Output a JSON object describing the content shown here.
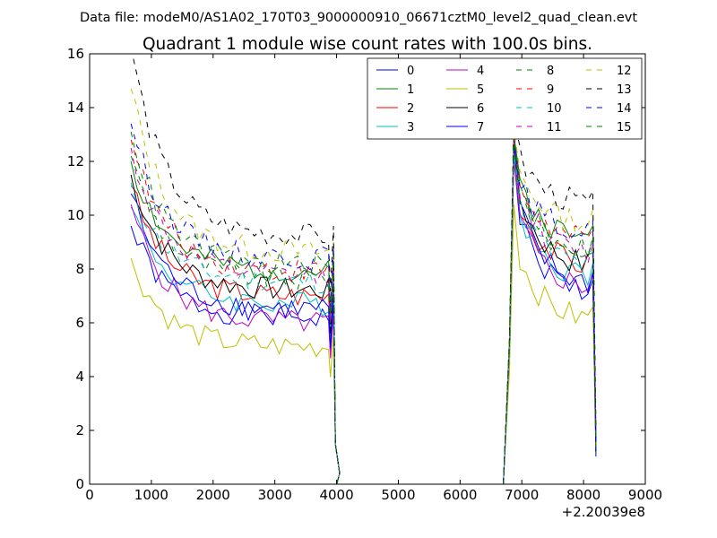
{
  "chart_data": {
    "type": "line",
    "suptitle": "Data file: modeM0/AS1A02_170T03_9000000910_06671cztM0_level2_quad_clean.evt",
    "title": "Quadrant 1 module wise count rates with 100.0s bins.",
    "xlabel": "",
    "ylabel": "",
    "offset_label": "+2.20039e8",
    "xlim": [
      0,
      9000
    ],
    "ylim": [
      0,
      16
    ],
    "x_ticks": [
      0,
      1000,
      2000,
      3000,
      4000,
      5000,
      6000,
      7000,
      8000,
      9000
    ],
    "y_ticks": [
      0,
      2,
      4,
      6,
      8,
      10,
      12,
      14,
      16
    ],
    "legend_position": "top-right",
    "legend_columns": 4,
    "segment1_start_x": 670,
    "segment1_step": 100,
    "gap_x": [
      4000,
      4100,
      4200,
      4300,
      4400,
      4500,
      4600,
      4700,
      4800,
      4900,
      5000,
      5100,
      5200,
      5300,
      5400,
      5500,
      5600,
      5700,
      5800,
      5900,
      6000,
      6100,
      6200,
      6300,
      6400,
      6500,
      6600,
      6700
    ],
    "segment2_x": [
      6700,
      6800,
      6870,
      6970,
      7070,
      7170,
      7270,
      7370,
      7470,
      7570,
      7670,
      7770,
      7870,
      7970,
      8070,
      8170
    ],
    "series": [
      {
        "name": "0",
        "color": "#0000ff",
        "style": "solid",
        "level": 6.2,
        "start": 9.6,
        "post_peak": 12.2,
        "post_level": 7.0,
        "seed": 1
      },
      {
        "name": "1",
        "color": "#008000",
        "style": "solid",
        "level": 7.9,
        "start": 12.0,
        "post_peak": 13.0,
        "post_level": 9.0,
        "seed": 2
      },
      {
        "name": "2",
        "color": "#ff0000",
        "style": "solid",
        "level": 7.0,
        "start": 11.1,
        "post_peak": 12.5,
        "post_level": 8.0,
        "seed": 3
      },
      {
        "name": "3",
        "color": "#00bfbf",
        "style": "solid",
        "level": 6.7,
        "start": 10.3,
        "post_peak": 12.2,
        "post_level": 7.6,
        "seed": 4
      },
      {
        "name": "4",
        "color": "#bf00bf",
        "style": "solid",
        "level": 6.0,
        "start": 10.4,
        "post_peak": 12.0,
        "post_level": 7.2,
        "seed": 5
      },
      {
        "name": "5",
        "color": "#bfbf00",
        "style": "solid",
        "level": 5.1,
        "start": 8.4,
        "post_peak": 10.4,
        "post_level": 6.0,
        "seed": 6
      },
      {
        "name": "6",
        "color": "#000000",
        "style": "solid",
        "level": 7.2,
        "start": 11.5,
        "post_peak": 12.8,
        "post_level": 8.0,
        "seed": 7
      },
      {
        "name": "7",
        "color": "#0000ff",
        "style": "solid",
        "level": 6.5,
        "start": 10.8,
        "post_peak": 12.6,
        "post_level": 7.3,
        "seed": 8
      },
      {
        "name": "8",
        "color": "#008000",
        "style": "dashed",
        "level": 7.6,
        "start": 12.2,
        "post_peak": 12.6,
        "post_level": 8.5,
        "seed": 9
      },
      {
        "name": "9",
        "color": "#ff0000",
        "style": "dashed",
        "level": 7.9,
        "start": 12.8,
        "post_peak": 12.9,
        "post_level": 8.9,
        "seed": 10
      },
      {
        "name": "10",
        "color": "#00bfbf",
        "style": "dashed",
        "level": 7.5,
        "start": 11.2,
        "post_peak": 12.3,
        "post_level": 8.0,
        "seed": 11
      },
      {
        "name": "11",
        "color": "#bf00bf",
        "style": "dashed",
        "level": 7.7,
        "start": 12.5,
        "post_peak": 13.0,
        "post_level": 8.4,
        "seed": 12
      },
      {
        "name": "12",
        "color": "#bfbf00",
        "style": "dashed",
        "level": 8.6,
        "start": 14.7,
        "post_peak": 13.2,
        "post_level": 9.6,
        "seed": 13
      },
      {
        "name": "13",
        "color": "#000000",
        "style": "dashed",
        "level": 9.2,
        "start": 16.2,
        "post_peak": 13.6,
        "post_level": 10.3,
        "seed": 14
      },
      {
        "name": "14",
        "color": "#0000ff",
        "style": "dashed",
        "level": 8.4,
        "start": 13.4,
        "post_peak": 12.8,
        "post_level": 9.2,
        "seed": 15
      },
      {
        "name": "15",
        "color": "#008000",
        "style": "dashed",
        "level": 8.1,
        "start": 13.1,
        "post_peak": 12.9,
        "post_level": 8.6,
        "seed": 16
      }
    ]
  }
}
